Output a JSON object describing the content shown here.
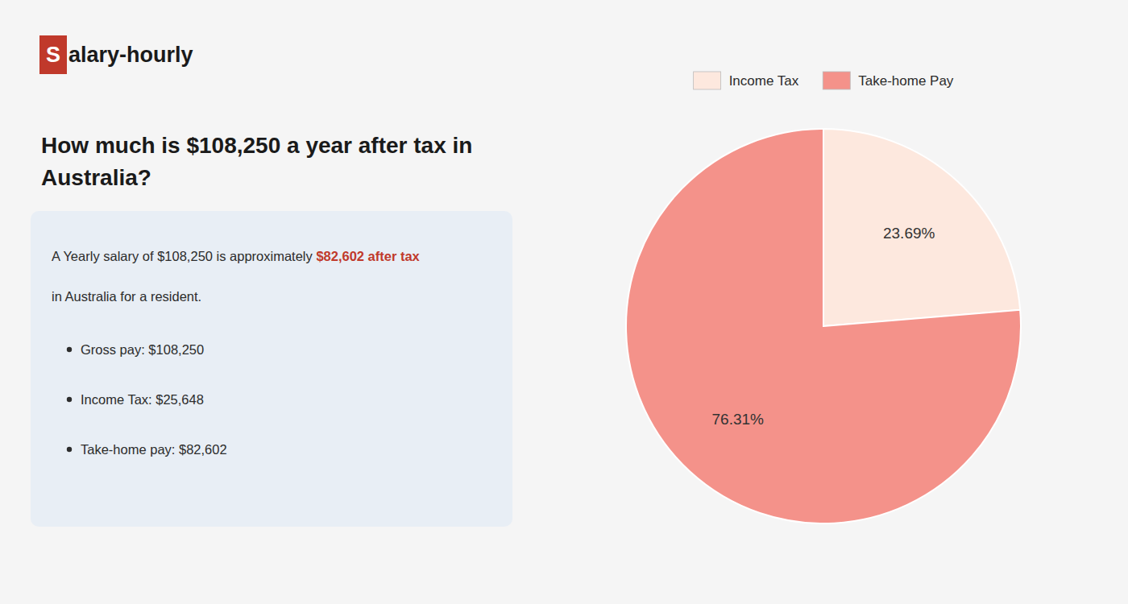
{
  "chart_data": {
    "type": "pie",
    "title": "How much is $108,250 a year after tax in\nAustralia?",
    "annotations": [
      {
        "text": "S",
        "color": "#ffffff",
        "background": "#c0392b"
      },
      {
        "text": "alary-hourly",
        "color": "#1a1a1a"
      },
      {
        "text": "A Yearly salary of $108,250 is approximately ",
        "color": "#2c2c2c"
      },
      {
        "text": "$82,602 after tax",
        "color": "#c0392b"
      },
      {
        "text": "in Australia for a resident.",
        "color": "#2c2c2c"
      },
      {
        "text": "Gross pay: $108,250",
        "color": "#2c2c2c"
      },
      {
        "text": "Income Tax: $25,648",
        "color": "#2c2c2c"
      },
      {
        "text": "Take-home pay: $82,602",
        "color": "#2c2c2c"
      }
    ],
    "categories": [
      "Income Tax",
      "Take-home Pay"
    ],
    "values": [
      23.69,
      76.31
    ],
    "value_labels": [
      "23.69%",
      "76.31%"
    ],
    "colors": [
      "#fde8de",
      "#f4928a"
    ],
    "data_labels": true,
    "legend": "top"
  }
}
